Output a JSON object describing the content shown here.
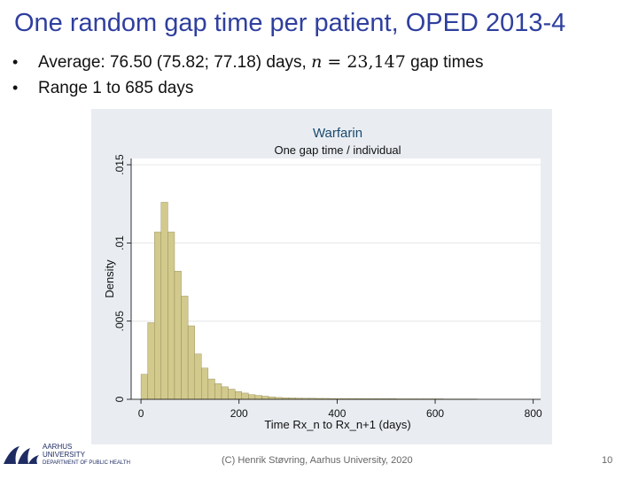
{
  "slide": {
    "title": "One random gap time per patient, OPED 2013-4",
    "bullet1": {
      "prefix": "Average: 76.50 (75.82; 77.18) days, ",
      "var": "n",
      "eq": " = 23,147",
      "suffix": " gap times"
    },
    "bullet2": "Range 1 to 685 days",
    "footer": "(C) Henrik Støvring, Aarhus University, 2020",
    "page_number": "10",
    "logo": {
      "line1": "AARHUS",
      "line2": "UNIVERSITY",
      "line3": "DEPARTMENT OF PUBLIC HEALTH"
    }
  },
  "chart_data": {
    "type": "bar",
    "title": "Warfarin",
    "subtitle": "One gap time / individual",
    "xlabel": "Time Rx_n to Rx_n+1 (days)",
    "ylabel": "Density",
    "xlim": [
      -20,
      815
    ],
    "ylim": [
      0,
      0.0154
    ],
    "xticks": [
      0,
      200,
      400,
      600,
      800
    ],
    "xtick_labels": [
      "0",
      "200",
      "400",
      "600",
      "800"
    ],
    "yticks": [
      0,
      0.005,
      0.01,
      0.015
    ],
    "ytick_labels": [
      "0",
      ".005",
      ".01",
      ".015"
    ],
    "grid": true,
    "bar_color": "#d2c98d",
    "bar_edge": "#8d8450",
    "plot_bg": "#ffffff",
    "outer_bg": "#e9edf2",
    "bin_width": 13.7,
    "bin_start": 0,
    "values": [
      0.0016,
      0.0049,
      0.0107,
      0.0126,
      0.0107,
      0.0082,
      0.0066,
      0.0047,
      0.0029,
      0.002,
      0.0013,
      0.001,
      0.0008,
      0.00065,
      0.0005,
      0.0004,
      0.0003,
      0.00025,
      0.0002,
      0.00015,
      0.00012,
      0.0001,
      9e-05,
      8e-05,
      7e-05,
      7e-05,
      6e-05,
      6e-05,
      5e-05,
      5e-05,
      5e-05,
      5e-05,
      5e-05,
      4e-05,
      4e-05,
      4e-05,
      4e-05,
      4e-05,
      3e-05,
      3e-05,
      3e-05,
      3e-05,
      3e-05,
      3e-05,
      3e-05,
      2e-05,
      2e-05,
      2e-05,
      2e-05,
      2e-05
    ]
  }
}
